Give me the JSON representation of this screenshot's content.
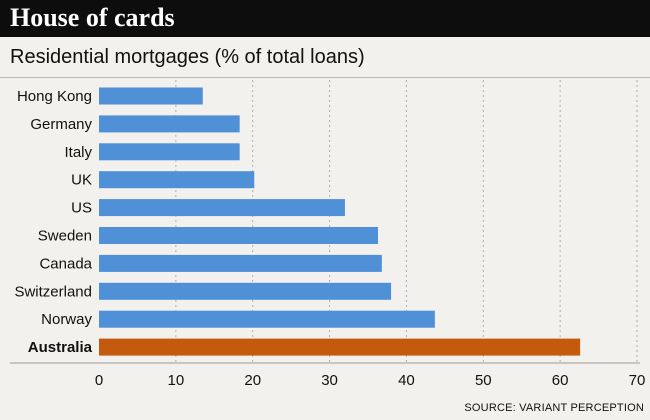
{
  "chart_data": {
    "type": "bar",
    "orientation": "horizontal",
    "title": "House of cards",
    "subtitle": "Residential mortgages (% of total loans)",
    "categories": [
      "Hong Kong",
      "Germany",
      "Italy",
      "UK",
      "US",
      "Sweden",
      "Canada",
      "Switzerland",
      "Norway",
      "Australia"
    ],
    "values": [
      13.5,
      18.3,
      18.3,
      20.2,
      32.0,
      36.3,
      36.8,
      38.0,
      43.7,
      62.6
    ],
    "highlight_category": "Australia",
    "xlim": [
      0,
      70
    ],
    "xticks": [
      0,
      10,
      20,
      30,
      40,
      50,
      60,
      70
    ],
    "grid": "vertical dotted",
    "xlabel": "",
    "ylabel": "",
    "colors": {
      "bar": "#4f90d6",
      "highlight": "#c45a0d",
      "grid": "#b0b0b0"
    }
  },
  "source": "SOURCE: VARIANT PERCEPTION"
}
